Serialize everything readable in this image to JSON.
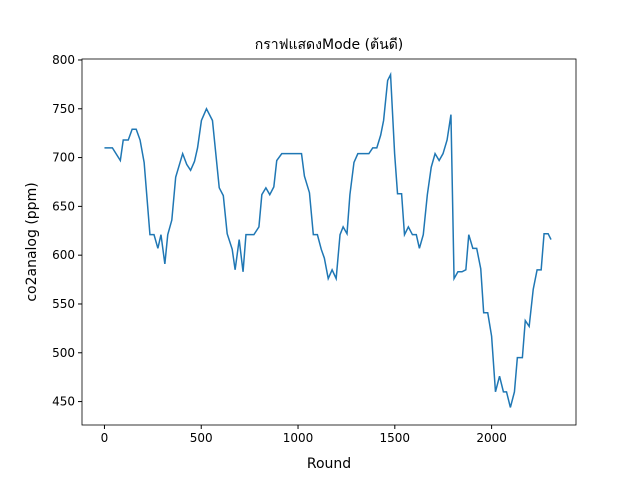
{
  "chart_data": {
    "type": "line",
    "title": "กราฟแสดงMode (ต้นดี)",
    "x_label": "Round",
    "y_label": "co2analog (ppm)",
    "x": [
      0,
      41,
      82,
      97,
      123,
      143,
      164,
      184,
      205,
      235,
      256,
      276,
      292,
      312,
      327,
      348,
      368,
      404,
      425,
      445,
      465,
      481,
      501,
      527,
      558,
      593,
      614,
      634,
      660,
      675,
      696,
      716,
      731,
      772,
      798,
      813,
      834,
      854,
      875,
      890,
      916,
      1018,
      1033,
      1059,
      1079,
      1100,
      1120,
      1136,
      1156,
      1176,
      1197,
      1217,
      1233,
      1253,
      1268,
      1289,
      1309,
      1366,
      1386,
      1407,
      1427,
      1442,
      1463,
      1478,
      1499,
      1514,
      1535,
      1550,
      1570,
      1591,
      1611,
      1627,
      1647,
      1668,
      1688,
      1708,
      1729,
      1749,
      1770,
      1790,
      1806,
      1826,
      1847,
      1867,
      1882,
      1903,
      1923,
      1944,
      1959,
      1980,
      2000,
      2020,
      2041,
      2061,
      2077,
      2097,
      2118,
      2133,
      2159,
      2174,
      2194,
      2215,
      2235,
      2256,
      2271,
      2292,
      2307
    ],
    "series": [
      {
        "name": "co2analog",
        "color": "#1f77b4",
        "values": [
          710,
          710,
          697,
          718,
          718,
          729,
          729,
          718,
          695,
          621,
          621,
          607,
          621,
          591,
          621,
          636,
          680,
          704,
          693,
          687,
          696,
          710,
          738,
          750,
          738,
          669,
          661,
          622,
          606,
          585,
          616,
          583,
          621,
          621,
          629,
          662,
          669,
          662,
          670,
          697,
          704,
          704,
          681,
          664,
          621,
          621,
          606,
          597,
          576,
          585,
          576,
          621,
          629,
          622,
          662,
          695,
          704,
          704,
          710,
          710,
          723,
          738,
          779,
          785,
          704,
          663,
          663,
          621,
          629,
          621,
          621,
          607,
          621,
          662,
          690,
          704,
          697,
          704,
          718,
          744,
          576,
          583,
          583,
          585,
          621,
          607,
          607,
          586,
          541,
          541,
          517,
          460,
          476,
          460,
          460,
          444,
          460,
          495,
          495,
          533,
          527,
          565,
          585,
          585,
          622,
          622,
          616
        ]
      }
    ],
    "xlim": [
      -116,
      2436
    ],
    "ylim": [
      426,
      801
    ],
    "xticks": [
      0,
      500,
      1000,
      1500,
      2000
    ],
    "yticks": [
      450,
      500,
      550,
      600,
      650,
      700,
      750,
      800
    ]
  }
}
